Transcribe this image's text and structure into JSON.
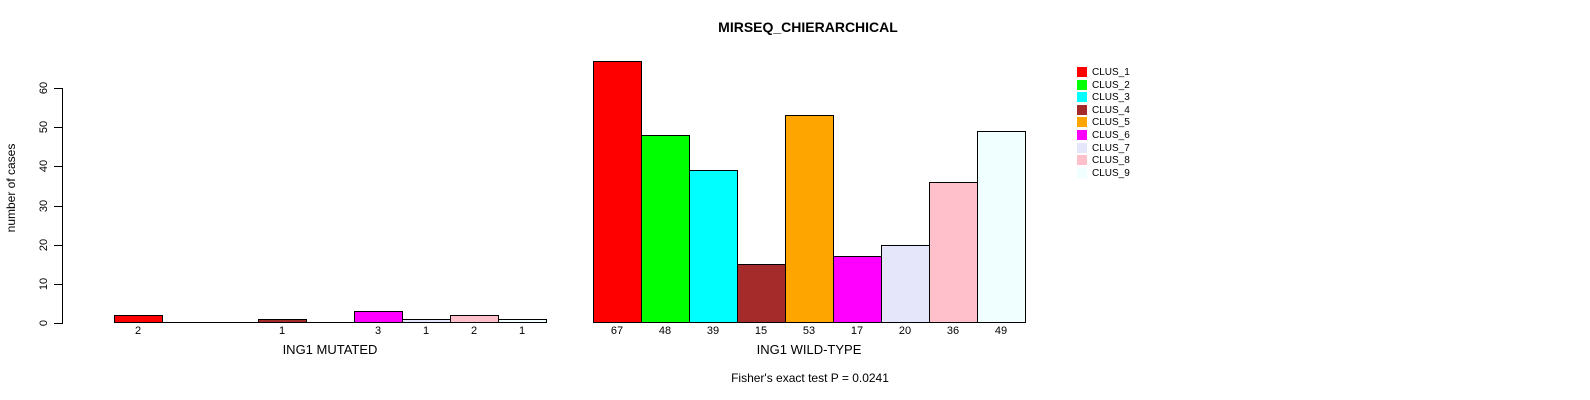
{
  "chart_data": {
    "type": "bar",
    "title": "MIRSEQ_CHIERARCHICAL",
    "ylabel": "number of cases",
    "ylim": [
      0,
      60
    ],
    "yticks": [
      0,
      10,
      20,
      30,
      40,
      50,
      60
    ],
    "grid": false,
    "legend_position": "right",
    "bar_border_color": "#000000",
    "categories": [
      "ING1 MUTATED",
      "ING1 WILD-TYPE"
    ],
    "series": [
      {
        "name": "CLUS_1",
        "color": "#FF0000",
        "values": [
          2,
          67
        ]
      },
      {
        "name": "CLUS_2",
        "color": "#00FF00",
        "values": [
          0,
          48
        ]
      },
      {
        "name": "CLUS_3",
        "color": "#00FFFF",
        "values": [
          0,
          39
        ]
      },
      {
        "name": "CLUS_4",
        "color": "#A52A2A",
        "values": [
          1,
          15
        ]
      },
      {
        "name": "CLUS_5",
        "color": "#FFA500",
        "values": [
          0,
          53
        ]
      },
      {
        "name": "CLUS_6",
        "color": "#FF00FF",
        "values": [
          3,
          17
        ]
      },
      {
        "name": "CLUS_7",
        "color": "#E6E6FA",
        "values": [
          1,
          20
        ]
      },
      {
        "name": "CLUS_8",
        "color": "#FFC0CB",
        "values": [
          2,
          36
        ]
      },
      {
        "name": "CLUS_9",
        "color": "#F0FFFF",
        "values": [
          1,
          49
        ]
      }
    ],
    "bar_value_labels": "shown under each non-zero bar",
    "annotation": "Fisher's exact test P = 0.0241"
  }
}
